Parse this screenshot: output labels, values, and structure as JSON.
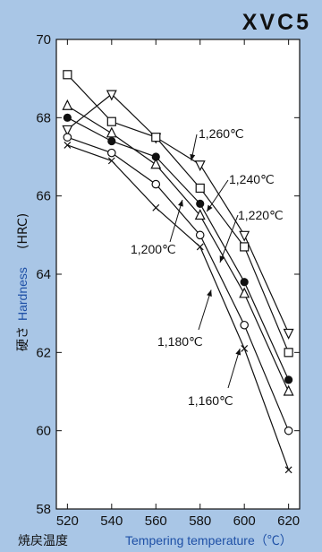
{
  "chart_data": {
    "type": "line",
    "title": "XVC5",
    "xlabel_jp": "焼戻温度",
    "xlabel_en": "Tempering temperature（℃）",
    "ylabel_jp": "硬さ",
    "ylabel_en": "Hardness",
    "ylabel_unit": "(HRC)",
    "x": [
      520,
      540,
      560,
      580,
      600,
      620
    ],
    "xlim": [
      515,
      625
    ],
    "ylim": [
      58,
      70
    ],
    "x_ticks": [
      520,
      540,
      560,
      580,
      600,
      620
    ],
    "y_ticks": [
      58,
      60,
      62,
      64,
      66,
      68,
      70
    ],
    "grid": false,
    "series": [
      {
        "name": "1,260℃",
        "marker": "triangle-down",
        "values": [
          67.7,
          68.6,
          67.5,
          66.8,
          65.0,
          62.5
        ]
      },
      {
        "name": "1,240℃",
        "marker": "square",
        "values": [
          69.1,
          67.9,
          67.5,
          66.2,
          64.7,
          62.0
        ]
      },
      {
        "name": "1,220℃",
        "marker": "triangle-up",
        "values": [
          68.3,
          67.6,
          66.8,
          65.5,
          63.5,
          61.0
        ]
      },
      {
        "name": "1,200℃",
        "marker": "filled-circle",
        "values": [
          68.0,
          67.4,
          67.0,
          65.8,
          63.8,
          61.3
        ]
      },
      {
        "name": "1,180℃",
        "marker": "open-circle",
        "values": [
          67.5,
          67.1,
          66.3,
          65.0,
          62.7,
          60.0
        ]
      },
      {
        "name": "1,160℃",
        "marker": "x",
        "values": [
          67.3,
          66.9,
          65.7,
          64.7,
          62.1,
          59.0
        ]
      }
    ]
  }
}
